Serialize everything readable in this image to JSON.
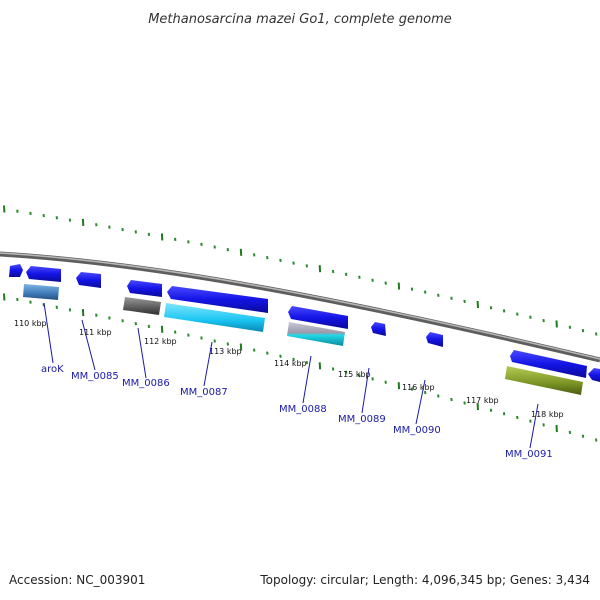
{
  "title": "Methanosarcina mazei Go1, complete genome",
  "footer": {
    "accession": "Accession: NC_003901",
    "summary": "Topology: circular; Length: 4,096,345 bp; Genes: 3,434"
  },
  "colors": {
    "backbone": "#8a8a8a",
    "forward_gene": "#1a1aee",
    "tick_major": "#1f7a1f",
    "tick_minor": "#2c8a2c",
    "label": "#1a1aa6"
  },
  "ticks": [
    {
      "label": "110 kbp"
    },
    {
      "label": "111 kbp"
    },
    {
      "label": "112 kbp"
    },
    {
      "label": "113 kbp"
    },
    {
      "label": "114 kbp"
    },
    {
      "label": "115 kbp"
    },
    {
      "label": "116 kbp"
    },
    {
      "label": "117 kbp"
    },
    {
      "label": "118 kbp"
    }
  ],
  "genes": [
    {
      "name": "aroK"
    },
    {
      "name": "MM_0085"
    },
    {
      "name": "MM_0086"
    },
    {
      "name": "MM_0087"
    },
    {
      "name": "MM_0088"
    },
    {
      "name": "MM_0089"
    },
    {
      "name": "MM_0090"
    },
    {
      "name": "MM_0091"
    }
  ]
}
